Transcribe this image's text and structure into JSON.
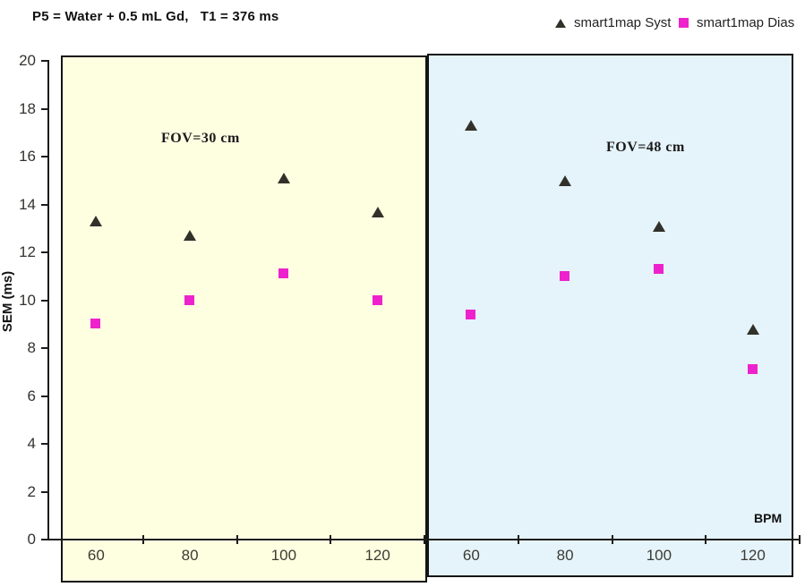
{
  "title": "P5 = Water + 0.5 mL Gd,   T1 = 376 ms",
  "legend": [
    {
      "label": "smart1map Syst",
      "marker": "triangle-icon",
      "color": "#31312a"
    },
    {
      "label": "smart1map Dias",
      "marker": "square-icon",
      "color": "#ee22cc"
    }
  ],
  "chart_data": {
    "type": "scatter",
    "title": "P5 = Water + 0.5 mL Gd,   T1 = 376 ms",
    "xlabel": "BPM",
    "ylabel": "SEM (ms)",
    "ylim": [
      0,
      20
    ],
    "ytick_step": 2,
    "grid": false,
    "legend_position": "top-right",
    "groups": [
      {
        "label": "FOV=30 cm",
        "background": "#feffe1",
        "categories": [
          "60",
          "80",
          "100",
          "120"
        ]
      },
      {
        "label": "FOV=48 cm",
        "background": "#e5f3fa",
        "categories": [
          "60",
          "80",
          "100",
          "120"
        ]
      }
    ],
    "series": [
      {
        "name": "smart1map Syst",
        "marker": "triangle",
        "color": "#31312a",
        "values": [
          13.3,
          12.7,
          15.1,
          13.7,
          17.3,
          15.0,
          13.1,
          8.8
        ]
      },
      {
        "name": "smart1map Dias",
        "marker": "square",
        "color": "#ee22cc",
        "values": [
          9.0,
          10.0,
          11.1,
          10.0,
          9.4,
          11.0,
          11.3,
          7.1
        ]
      }
    ]
  }
}
